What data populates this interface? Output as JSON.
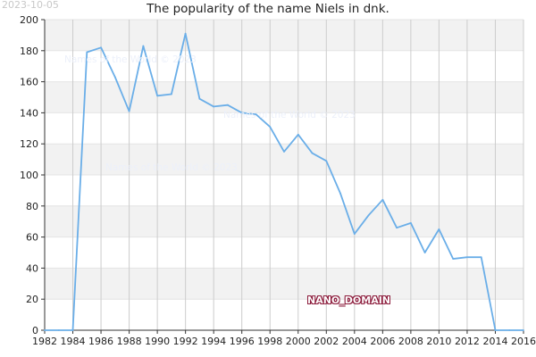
{
  "date_stamp": "2023-10-05",
  "watermark": "Names of the World © 2023",
  "domain_mark": "NANO_DOMAIN",
  "colors": {
    "line": "#6aaee8",
    "band": "#f2f2f2",
    "grid": "#cccccc",
    "axis": "#333333"
  },
  "chart_data": {
    "type": "line",
    "title": "The popularity of the name Niels in dnk.",
    "xlabel": "",
    "ylabel": "",
    "xlim": [
      1982,
      2016
    ],
    "ylim": [
      0,
      200
    ],
    "grid": true,
    "x_ticks": [
      1982,
      1984,
      1986,
      1988,
      1990,
      1992,
      1994,
      1996,
      1998,
      2000,
      2002,
      2004,
      2006,
      2008,
      2010,
      2012,
      2014,
      2016
    ],
    "y_ticks": [
      0,
      20,
      40,
      60,
      80,
      100,
      120,
      140,
      160,
      180,
      200
    ],
    "series": [
      {
        "x": [
          1982,
          1983,
          1984,
          1985,
          1986,
          1987,
          1988,
          1989,
          1990,
          1991,
          1992,
          1993,
          1994,
          1995,
          1996,
          1997,
          1998,
          1999,
          2000,
          2001,
          2002,
          2003,
          2004,
          2005,
          2006,
          2007,
          2008,
          2009,
          2010,
          2011,
          2012,
          2013,
          2014,
          2015,
          2016
        ],
        "y": [
          0,
          0,
          0,
          179,
          182,
          163,
          141,
          183,
          151,
          152,
          191,
          149,
          144,
          145,
          140,
          139,
          131,
          115,
          126,
          114,
          109,
          88,
          62,
          74,
          84,
          66,
          69,
          50,
          65,
          46,
          47,
          47,
          0,
          0,
          0
        ]
      }
    ]
  }
}
